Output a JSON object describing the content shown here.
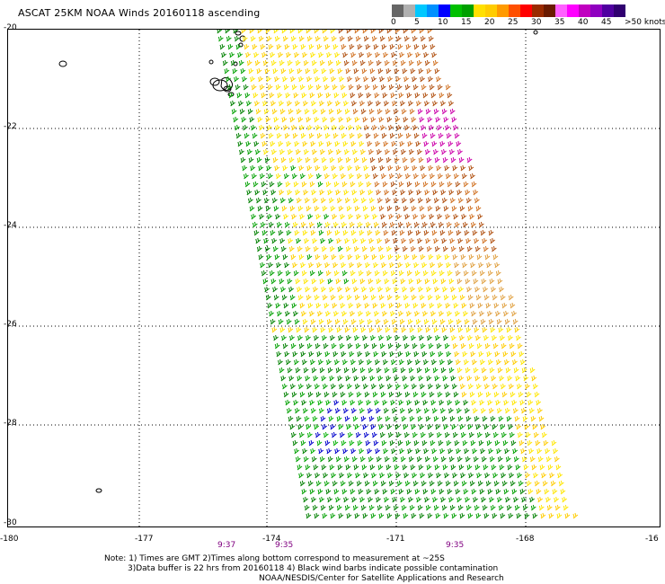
{
  "title": "ASCAT 25KM NOAA Winds 20160118 ascending",
  "colorbar": {
    "labels": [
      "0",
      "5",
      "10",
      "15",
      "20",
      "25",
      "30",
      "35",
      "40",
      "45",
      ">50 knots"
    ],
    "colors": [
      "#666666",
      "#b0b0b0",
      "#00c8ff",
      "#0090ff",
      "#0000ff",
      "#00c000",
      "#00a000",
      "#ffe000",
      "#ffcc00",
      "#ff9a00",
      "#ff5000",
      "#ff0000",
      "#9a2a00",
      "#6a1a00",
      "#ff60ff",
      "#ff00ff",
      "#c000c0",
      "#9000c0",
      "#5000a0",
      "#300070"
    ]
  },
  "map": {
    "lat_ticks": [
      "-20",
      "-22",
      "-24",
      "-26",
      "-28",
      "-30"
    ],
    "lon_ticks": [
      "-180",
      "-177",
      "-174",
      "-171",
      "-168",
      "-16"
    ],
    "lon_range": [
      -180,
      -165
    ],
    "lat_range": [
      -30,
      -20
    ]
  },
  "swath_times": [
    "9:37",
    "9:35",
    "9:35"
  ],
  "notes": {
    "line1": "Note: 1) Times are GMT 2)Times along bottom correspond to measurement at ~25S",
    "line2": "3)Data buffer is 22 hrs from 20160118 4) Black wind barbs indicate possible contamination",
    "line3": "NOAA/NESDIS/Center for Satellite Applications and Research"
  }
}
